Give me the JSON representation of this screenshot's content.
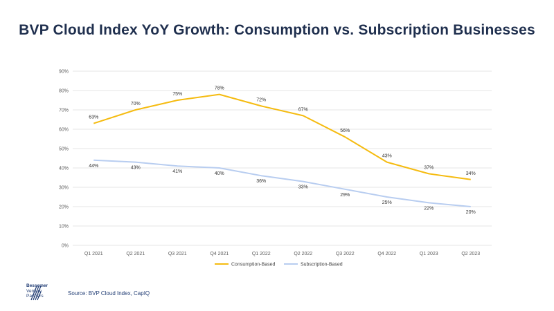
{
  "title": "BVP Cloud Index YoY Growth: Consumption vs. Subscription Businesses",
  "source": "Source: BVP Cloud Index, CapIQ",
  "logo": {
    "line1": "Bessemer",
    "line2": "Venture",
    "line3": "Partners"
  },
  "colors": {
    "consumption": "#f5bb10",
    "subscription": "#b8cdf0",
    "title": "#1f2f4e",
    "grid": "#e6e6e6"
  },
  "chart_data": {
    "type": "line",
    "title": "BVP Cloud Index YoY Growth: Consumption vs. Subscription Businesses",
    "categories": [
      "Q1 2021",
      "Q2 2021",
      "Q3 2021",
      "Q4 2021",
      "Q1 2022",
      "Q2 2022",
      "Q3 2022",
      "Q4 2022",
      "Q1 2023",
      "Q2 2023"
    ],
    "series": [
      {
        "name": "Consumption-Based",
        "values": [
          63,
          70,
          75,
          78,
          72,
          67,
          56,
          43,
          37,
          34
        ],
        "labels": [
          "63%",
          "70%",
          "75%",
          "78%",
          "72%",
          "67%",
          "56%",
          "43%",
          "37%",
          "34%"
        ],
        "color": "#f5bb10"
      },
      {
        "name": "Subscription-Based",
        "values": [
          44,
          43,
          41,
          40,
          36,
          33,
          29,
          25,
          22,
          20
        ],
        "labels": [
          "44%",
          "43%",
          "41%",
          "40%",
          "36%",
          "33%",
          "29%",
          "25%",
          "22%",
          "20%"
        ],
        "color": "#b8cdf0"
      }
    ],
    "yticks": [
      "0%",
      "10%",
      "20%",
      "30%",
      "40%",
      "50%",
      "60%",
      "70%",
      "80%",
      "90%"
    ],
    "ylim": [
      0,
      90
    ],
    "grid": true,
    "legend_position": "bottom"
  }
}
